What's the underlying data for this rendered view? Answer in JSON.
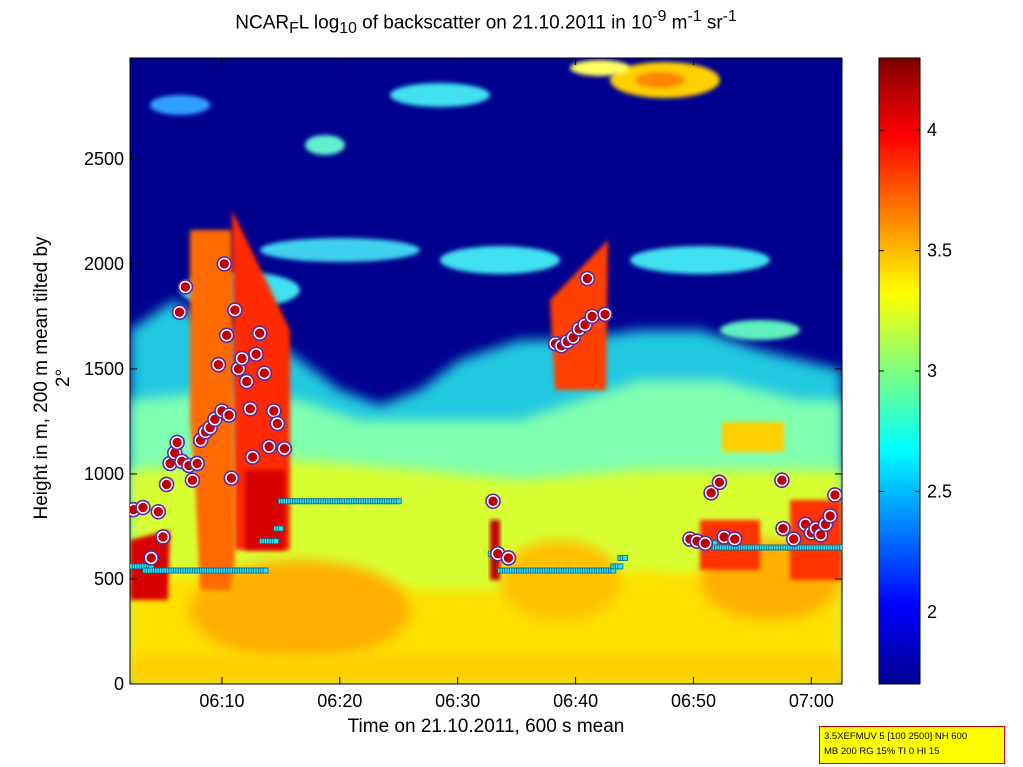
{
  "chart_data": {
    "type": "heatmap",
    "title": {
      "prefix": "NCAR",
      "sub_f": "F",
      "mid": "L log",
      "sub_10": "10",
      "rest": " of backscatter on 21.10.2011 in 10",
      "sup1": "-9",
      "unit_m": " m",
      "sup2": "-1",
      "unit_sr": " sr",
      "sup3": "-1"
    },
    "xlabel": "Time on 21.10.2011, 600 s mean",
    "ylabel": "Height in m, 200 m mean tilted by 2°",
    "x_ticks": [
      "06:10",
      "06:20",
      "06:30",
      "06:40",
      "06:50",
      "07:00"
    ],
    "x_tick_minutes": [
      10,
      20,
      30,
      40,
      50,
      60
    ],
    "xlim_minutes_after_0600": [
      2.2,
      62.6
    ],
    "y_ticks": [
      0,
      500,
      1000,
      1500,
      2000,
      2500
    ],
    "ylim": [
      0,
      2980
    ],
    "colorbar": {
      "ticks": [
        2,
        2.5,
        3,
        3.5,
        4
      ],
      "labels": [
        "2",
        "2.5",
        "3",
        "3.5",
        "4"
      ],
      "range": [
        1.7,
        4.3
      ],
      "colormap": "jet"
    },
    "cloud_base_markers": [
      {
        "t": 2.5,
        "h": 830
      },
      {
        "t": 3.3,
        "h": 840
      },
      {
        "t": 4.0,
        "h": 600
      },
      {
        "t": 4.6,
        "h": 820
      },
      {
        "t": 5.0,
        "h": 700
      },
      {
        "t": 5.3,
        "h": 950
      },
      {
        "t": 5.6,
        "h": 1050
      },
      {
        "t": 6.0,
        "h": 1100
      },
      {
        "t": 6.2,
        "h": 1150
      },
      {
        "t": 6.4,
        "h": 1770
      },
      {
        "t": 6.6,
        "h": 1060
      },
      {
        "t": 6.9,
        "h": 1890
      },
      {
        "t": 7.2,
        "h": 1040
      },
      {
        "t": 7.5,
        "h": 970
      },
      {
        "t": 7.9,
        "h": 1050
      },
      {
        "t": 8.2,
        "h": 1160
      },
      {
        "t": 8.6,
        "h": 1200
      },
      {
        "t": 9.0,
        "h": 1220
      },
      {
        "t": 9.4,
        "h": 1260
      },
      {
        "t": 9.7,
        "h": 1520
      },
      {
        "t": 10.0,
        "h": 1300
      },
      {
        "t": 10.2,
        "h": 2000
      },
      {
        "t": 10.4,
        "h": 1660
      },
      {
        "t": 10.6,
        "h": 1280
      },
      {
        "t": 10.8,
        "h": 980
      },
      {
        "t": 11.1,
        "h": 1780
      },
      {
        "t": 11.4,
        "h": 1500
      },
      {
        "t": 11.7,
        "h": 1550
      },
      {
        "t": 12.1,
        "h": 1440
      },
      {
        "t": 12.4,
        "h": 1310
      },
      {
        "t": 12.6,
        "h": 1080
      },
      {
        "t": 12.9,
        "h": 1570
      },
      {
        "t": 13.2,
        "h": 1670
      },
      {
        "t": 13.6,
        "h": 1480
      },
      {
        "t": 14.0,
        "h": 1130
      },
      {
        "t": 14.4,
        "h": 1300
      },
      {
        "t": 14.7,
        "h": 1240
      },
      {
        "t": 15.3,
        "h": 1120
      },
      {
        "t": 33.0,
        "h": 870
      },
      {
        "t": 33.4,
        "h": 620
      },
      {
        "t": 34.3,
        "h": 600
      },
      {
        "t": 38.3,
        "h": 1620
      },
      {
        "t": 38.8,
        "h": 1610
      },
      {
        "t": 39.3,
        "h": 1630
      },
      {
        "t": 39.8,
        "h": 1650
      },
      {
        "t": 40.3,
        "h": 1690
      },
      {
        "t": 40.8,
        "h": 1710
      },
      {
        "t": 41.0,
        "h": 1930
      },
      {
        "t": 41.4,
        "h": 1750
      },
      {
        "t": 42.5,
        "h": 1760
      },
      {
        "t": 49.7,
        "h": 690
      },
      {
        "t": 50.3,
        "h": 680
      },
      {
        "t": 51.0,
        "h": 670
      },
      {
        "t": 51.5,
        "h": 910
      },
      {
        "t": 52.2,
        "h": 960
      },
      {
        "t": 52.6,
        "h": 700
      },
      {
        "t": 53.5,
        "h": 690
      },
      {
        "t": 57.5,
        "h": 970
      },
      {
        "t": 57.6,
        "h": 740
      },
      {
        "t": 58.5,
        "h": 690
      },
      {
        "t": 59.5,
        "h": 760
      },
      {
        "t": 60.0,
        "h": 720
      },
      {
        "t": 60.4,
        "h": 740
      },
      {
        "t": 60.8,
        "h": 710
      },
      {
        "t": 61.2,
        "h": 760
      },
      {
        "t": 61.6,
        "h": 800
      },
      {
        "t": 62.0,
        "h": 900
      }
    ],
    "mixing_layer_segments": [
      {
        "t0": 2.2,
        "t1": 4.0,
        "h": 560
      },
      {
        "t0": 3.5,
        "t1": 13.8,
        "h": 540
      },
      {
        "t0": 13.4,
        "t1": 14.6,
        "h": 680
      },
      {
        "t0": 14.6,
        "t1": 15.0,
        "h": 740
      },
      {
        "t0": 15.0,
        "t1": 25.0,
        "h": 870
      },
      {
        "t0": 32.8,
        "t1": 33.6,
        "h": 620
      },
      {
        "t0": 33.6,
        "t1": 43.2,
        "h": 540
      },
      {
        "t0": 43.2,
        "t1": 43.8,
        "h": 560
      },
      {
        "t0": 43.8,
        "t1": 44.3,
        "h": 600
      },
      {
        "t0": 49.6,
        "t1": 51.8,
        "h": 670
      },
      {
        "t0": 51.8,
        "t1": 62.6,
        "h": 650
      }
    ]
  },
  "info_box": {
    "line1": "3.5XEFMUV 5 [100 2500] NH 600",
    "line2": "MB 200 RG 15% TI 0 HI 15"
  },
  "colors": {
    "marker_fill": "#c00000",
    "marker_edge": "#5a2aa6",
    "ml_fill": "#33e0f0",
    "ml_edge": "#0b6a8a",
    "info_bg": "#ffff00",
    "info_border": "#cc0000"
  }
}
